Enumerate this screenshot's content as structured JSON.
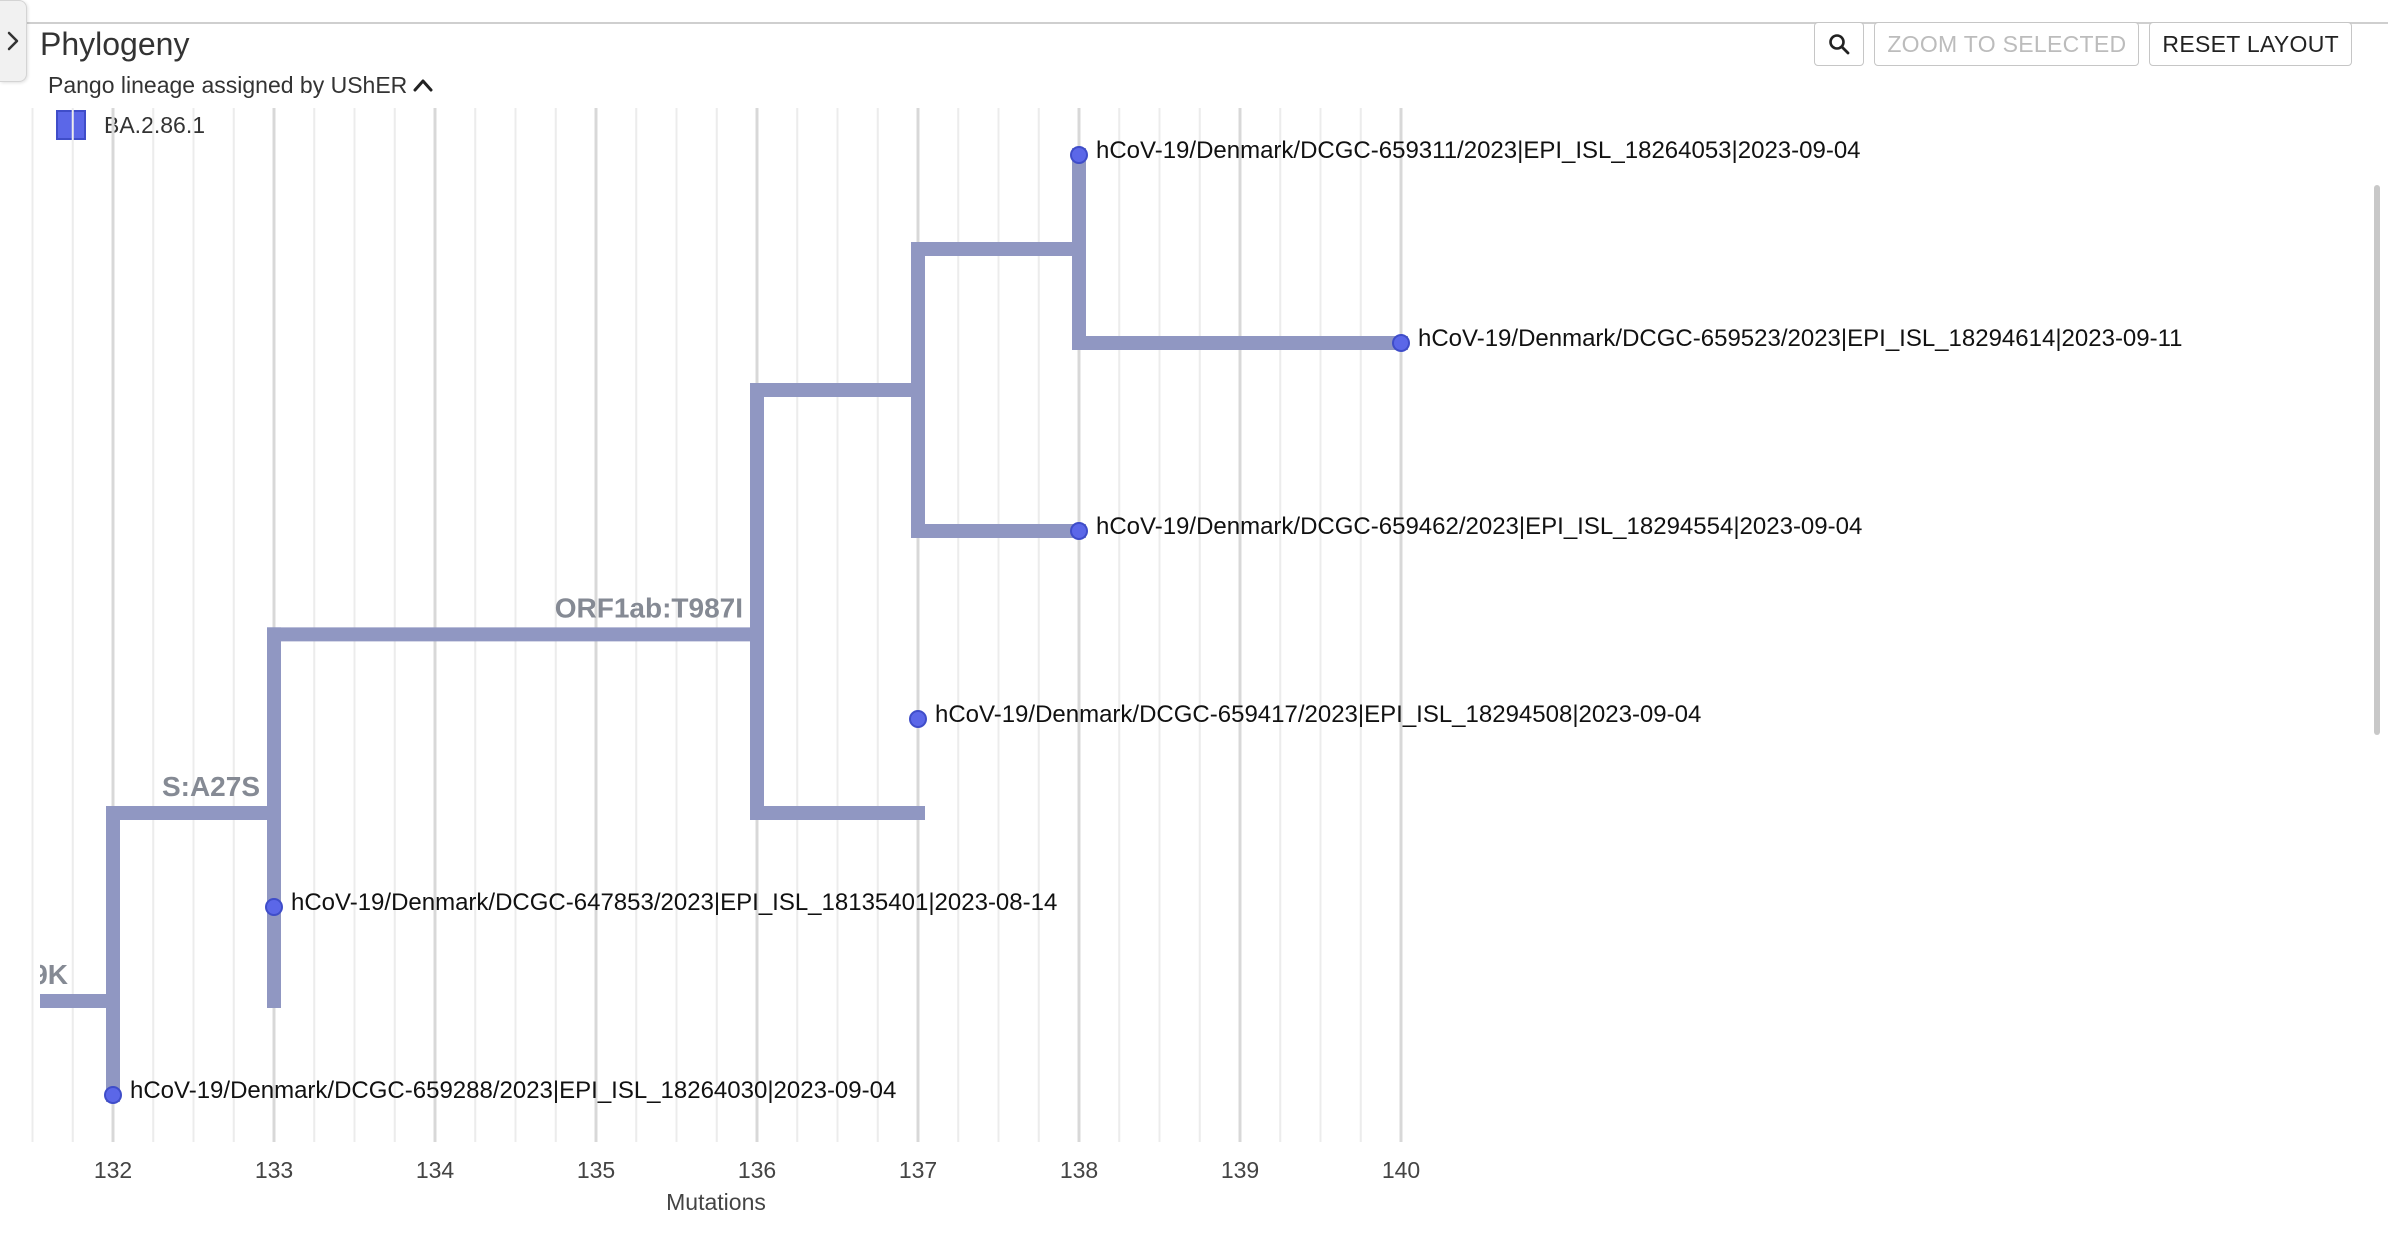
{
  "panel": {
    "title": "Phylogeny",
    "color_by_label": "Pango lineage assigned by UShER"
  },
  "legend": {
    "items": [
      {
        "label": "BA.2.86.1",
        "color": "#5b67e8"
      }
    ]
  },
  "toolbar": {
    "search_icon": "magnifier-icon",
    "zoom_to_selected_label": "ZOOM TO SELECTED",
    "reset_layout_label": "RESET LAYOUT"
  },
  "colors": {
    "branch": "#9097c2",
    "node_fill": "#5b67e8",
    "node_stroke": "#3f4dc9",
    "grid_major": "#d8d8d8",
    "grid_minor": "#ececec"
  },
  "chart_data": {
    "type": "phylogenetic-tree",
    "xlabel": "Mutations",
    "x_ticks": [
      132,
      133,
      134,
      135,
      136,
      137,
      138,
      139,
      140
    ],
    "xlim": [
      131.5,
      140
    ],
    "branches": [
      {
        "from_x": 131.5,
        "to_x": 132,
        "y": 4.5
      },
      {
        "from_x": 132,
        "to_x": 133,
        "y": 3.5
      },
      {
        "from_x": 132,
        "to_x": 132,
        "y": 5
      },
      {
        "from_x": 133,
        "to_x": 136,
        "y": 2.55
      },
      {
        "from_x": 136,
        "to_x": 137,
        "y": 1.25
      },
      {
        "from_x": 136,
        "to_x": 137,
        "y": 3.5
      },
      {
        "from_x": 137,
        "to_x": 138,
        "y": 0.5
      },
      {
        "from_x": 137,
        "to_x": 138,
        "y": 2
      },
      {
        "from_x": 138,
        "to_x": 140,
        "y": 1
      }
    ],
    "verticals": [
      {
        "x": 132,
        "y1": 3.5,
        "y2": 5
      },
      {
        "x": 133,
        "y1": 2.55,
        "y2": 4.5
      },
      {
        "x": 136,
        "y1": 1.25,
        "y2": 3.5
      },
      {
        "x": 137,
        "y1": 0.5,
        "y2": 2
      },
      {
        "x": 138,
        "y1": 0,
        "y2": 1
      }
    ],
    "mutations": [
      {
        "label": "9K",
        "x": 131.5,
        "y": 4.5,
        "clip": true
      },
      {
        "label": "S:A27S",
        "x": 133,
        "y": 3.5
      },
      {
        "label": "ORF1ab:T987I",
        "x": 136,
        "y": 2.55
      }
    ],
    "leaves": [
      {
        "label": "hCoV-19/Denmark/DCGC-659311/2023|EPI_ISL_18264053|2023-09-04",
        "x": 138,
        "y": 0
      },
      {
        "label": "hCoV-19/Denmark/DCGC-659523/2023|EPI_ISL_18294614|2023-09-11",
        "x": 140,
        "y": 1
      },
      {
        "label": "hCoV-19/Denmark/DCGC-659462/2023|EPI_ISL_18294554|2023-09-04",
        "x": 138,
        "y": 2
      },
      {
        "label": "hCoV-19/Denmark/DCGC-659417/2023|EPI_ISL_18294508|2023-09-04",
        "x": 137,
        "y": 3
      },
      {
        "label": "hCoV-19/Denmark/DCGC-647853/2023|EPI_ISL_18135401|2023-08-14",
        "x": 133,
        "y": 4
      },
      {
        "label": "hCoV-19/Denmark/DCGC-659288/2023|EPI_ISL_18264030|2023-09-04",
        "x": 132,
        "y": 5
      }
    ]
  }
}
